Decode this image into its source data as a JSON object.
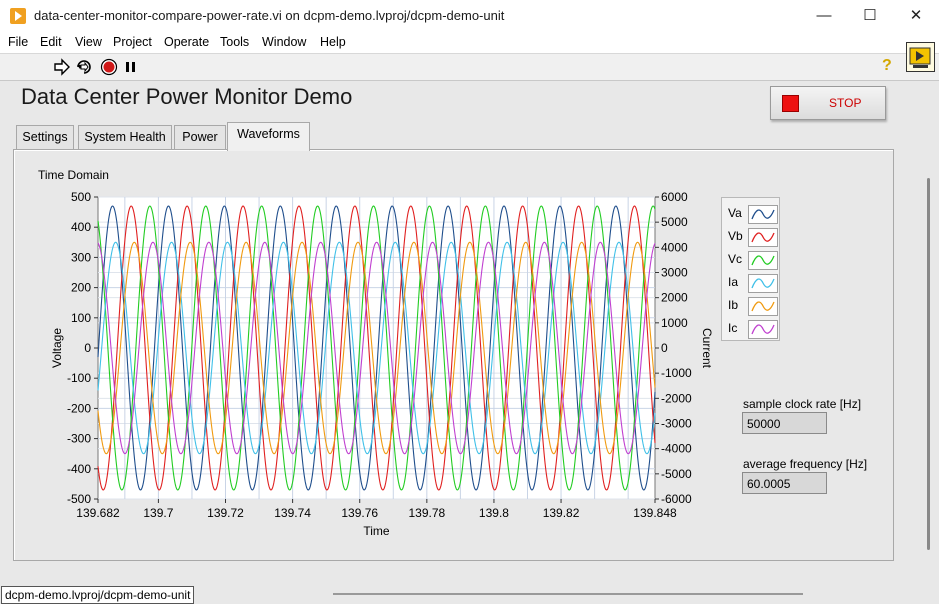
{
  "window": {
    "title": "data-center-monitor-compare-power-rate.vi on dcpm-demo.lvproj/dcpm-demo-unit",
    "minimize": "—",
    "maximize": "☐",
    "close": "✕"
  },
  "menu": [
    "File",
    "Edit",
    "View",
    "Project",
    "Operate",
    "Tools",
    "Window",
    "Help"
  ],
  "toolbar": {
    "run_icon": "run-arrow-icon",
    "run_continuous_icon": "run-continuously-icon",
    "abort_icon": "abort-icon",
    "pause_icon": "pause-icon",
    "help_icon": "context-help-icon",
    "help_glyph": "?"
  },
  "panel": {
    "title": "Data Center Power Monitor Demo",
    "stop_label": "STOP",
    "tabs": [
      "Settings",
      "System Health",
      "Power",
      "Waveforms"
    ],
    "active_tab": "Waveforms"
  },
  "chart_data": {
    "type": "line",
    "title": "Time Domain",
    "xlabel": "Time",
    "ylabel": "Voltage",
    "y2label": "Current",
    "xlim": [
      139.682,
      139.848
    ],
    "ylim": [
      -500,
      500
    ],
    "y2lim": [
      -6000,
      6000
    ],
    "x_ticks": [
      "139.682",
      "139.7",
      "139.72",
      "139.74",
      "139.76",
      "139.78",
      "139.8",
      "139.82",
      "139.848"
    ],
    "x_tick_values": [
      139.682,
      139.7,
      139.72,
      139.74,
      139.76,
      139.78,
      139.8,
      139.82,
      139.848
    ],
    "y_ticks": [
      500,
      400,
      300,
      200,
      100,
      0,
      -100,
      -200,
      -300,
      -400,
      -500
    ],
    "y2_ticks": [
      6000,
      5000,
      4000,
      3000,
      2000,
      1000,
      0,
      -1000,
      -2000,
      -3000,
      -4000,
      -5000,
      -6000
    ],
    "frequency_hz": 60.0005,
    "grid": true,
    "legend_position": "right",
    "series": [
      {
        "name": "Va",
        "axis": "left",
        "amplitude": 470,
        "phase_deg": 0,
        "color": "#1f4e8c"
      },
      {
        "name": "Vb",
        "axis": "left",
        "amplitude": 470,
        "phase_deg": -120,
        "color": "#e02020"
      },
      {
        "name": "Vc",
        "axis": "left",
        "amplitude": 470,
        "phase_deg": 120,
        "color": "#22cc22"
      },
      {
        "name": "Ia",
        "axis": "right",
        "amplitude": 4200,
        "phase_deg": -20,
        "color": "#40c0e8"
      },
      {
        "name": "Ib",
        "axis": "right",
        "amplitude": 4200,
        "phase_deg": -140,
        "color": "#f09a10"
      },
      {
        "name": "Ic",
        "axis": "right",
        "amplitude": 4200,
        "phase_deg": 100,
        "color": "#c040d0"
      }
    ]
  },
  "indicators": {
    "sample_rate_label": "sample clock rate [Hz]",
    "sample_rate_value": "50000",
    "avg_freq_label": "average frequency [Hz]",
    "avg_freq_value": "60.0005"
  },
  "status": {
    "path": "dcpm-demo.lvproj/dcpm-demo-unit"
  }
}
